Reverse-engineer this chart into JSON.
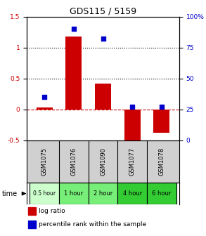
{
  "title": "GDS115 / 5159",
  "samples": [
    "GSM1075",
    "GSM1076",
    "GSM1090",
    "GSM1077",
    "GSM1078"
  ],
  "time_labels": [
    "0.5 hour",
    "1 hour",
    "2 hour",
    "4 hour",
    "6 hour"
  ],
  "time_colors": [
    "#ccffcc",
    "#77ee77",
    "#77ee77",
    "#33cc33",
    "#33cc33"
  ],
  "log_ratio": [
    0.03,
    1.18,
    0.42,
    -0.55,
    -0.38
  ],
  "percentile": [
    35,
    90,
    82,
    27,
    27
  ],
  "ylim_left": [
    -0.5,
    1.5
  ],
  "ylim_right": [
    0,
    100
  ],
  "bar_color": "#cc0000",
  "scatter_color": "#0000cc",
  "bg_color": "#ffffff",
  "label_bg": "#d0d0d0",
  "title_fontsize": 9
}
